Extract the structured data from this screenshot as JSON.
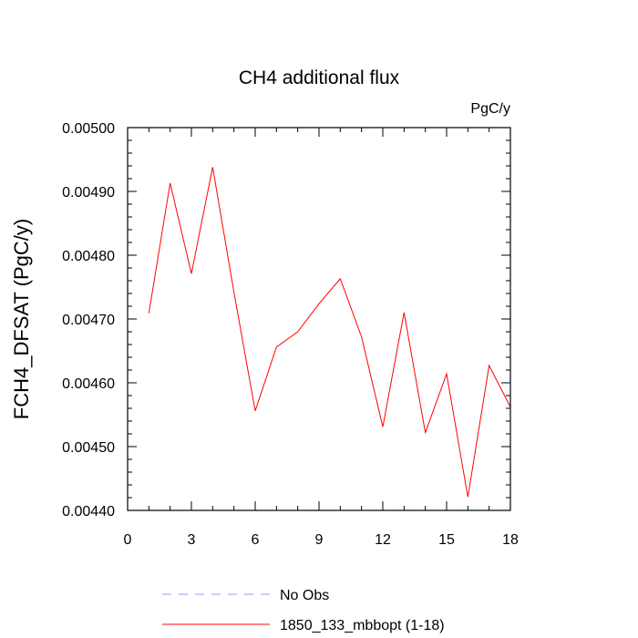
{
  "chart_data": {
    "type": "line",
    "title": "CH4 additional flux",
    "units": "PgC/y",
    "xlabel": "",
    "ylabel": "FCH4_DFSAT  (PgC/y)",
    "xlim": [
      0,
      18
    ],
    "ylim": [
      0.0044,
      0.005
    ],
    "x_ticks": [
      0,
      3,
      6,
      9,
      12,
      15,
      18
    ],
    "x_tick_labels": [
      "0",
      "3",
      "6",
      "9",
      "12",
      "15",
      "18"
    ],
    "x_minor_step": 1,
    "y_ticks": [
      0.0044,
      0.0045,
      0.0046,
      0.0047,
      0.0048,
      0.0049,
      0.005
    ],
    "y_tick_labels": [
      "0.00440",
      "0.00450",
      "0.00460",
      "0.00470",
      "0.00480",
      "0.00490",
      "0.00500"
    ],
    "y_minor_step": 2e-05,
    "grid": false,
    "legend_position": "bottom",
    "series": [
      {
        "name": "1850_133_mbbopt (1-18)",
        "color": "#ff0000",
        "style": "solid",
        "x": [
          1,
          2,
          3,
          4,
          5,
          6,
          7,
          8,
          9,
          10,
          11,
          12,
          13,
          14,
          15,
          16,
          17,
          18
        ],
        "y": [
          0.004709,
          0.004913,
          0.004771,
          0.004938,
          0.004742,
          0.004556,
          0.004656,
          0.00468,
          0.004724,
          0.004763,
          0.004672,
          0.004531,
          0.00471,
          0.004522,
          0.004614,
          0.004421,
          0.004627,
          0.004562
        ]
      }
    ],
    "legend": [
      {
        "label": "No Obs",
        "color": "#9999ff",
        "style": "dashed"
      },
      {
        "label": "1850_133_mbbopt (1-18)",
        "color": "#ff0000",
        "style": "solid"
      }
    ]
  }
}
